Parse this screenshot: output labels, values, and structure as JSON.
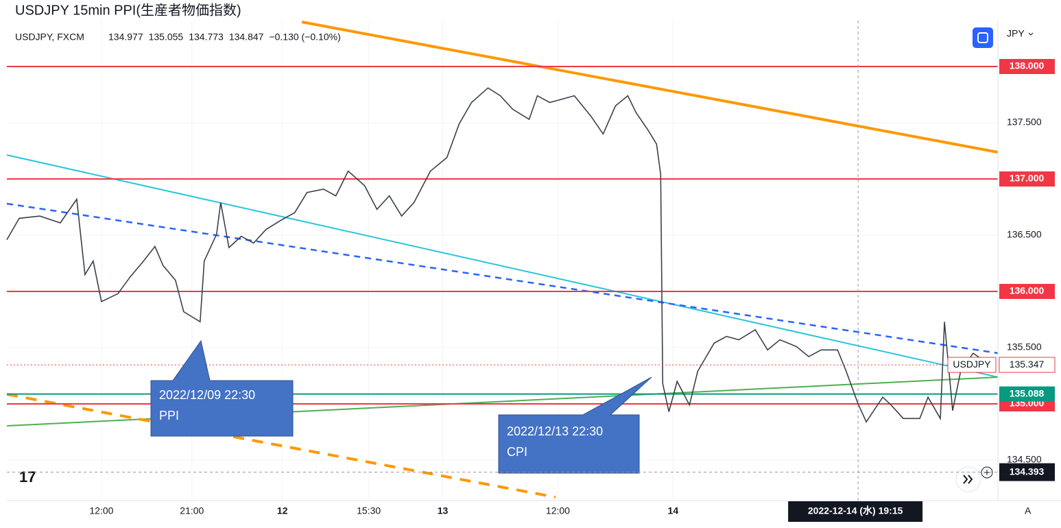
{
  "title": "USDJPY 15min PPI(生産者物価指数)",
  "chart_data": {
    "type": "line",
    "symbol": "USDJPY, FXCM",
    "ohlc": [
      134.977,
      135.055,
      134.773,
      134.847
    ],
    "change": "−0.130 (−0.10%)",
    "currency": "JPY",
    "scale_mode": "A",
    "xlim": [
      0,
      241
    ],
    "ylim": [
      134.15,
      138.4
    ],
    "grid": true,
    "xticks": [
      {
        "value": 23,
        "label": "12:00"
      },
      {
        "value": 45,
        "label": "21:00"
      },
      {
        "value": 67,
        "label": "12"
      },
      {
        "value": 88,
        "label": "15:30"
      },
      {
        "value": 106,
        "label": "13"
      },
      {
        "value": 134,
        "label": "12:00"
      },
      {
        "value": 162,
        "label": "14"
      }
    ],
    "yticks": [
      {
        "value": 137.5,
        "label": "137.500"
      },
      {
        "value": 136.5,
        "label": "136.500"
      },
      {
        "value": 135.5,
        "label": "135.500"
      },
      {
        "value": 134.5,
        "label": "134.500"
      }
    ],
    "levels": [
      {
        "value": 138,
        "label": "138.000",
        "color": "#f23645"
      },
      {
        "value": 137,
        "label": "137.000",
        "color": "#f23645"
      },
      {
        "value": 136,
        "label": "136.000",
        "color": "#f23645"
      },
      {
        "value": 135,
        "label": "135.000",
        "color": "#f23645"
      },
      {
        "value": 135.088,
        "label": "135.088",
        "color": "#089981"
      }
    ],
    "last": 135.347,
    "crosshair": {
      "x": 207,
      "x_label": "2022-12-14 (水)  19:15",
      "y": 134.393
    },
    "series": [
      {
        "name": "USDJPY",
        "color": "#3a3f4b",
        "x": [
          0,
          3,
          8,
          13,
          17,
          19,
          21,
          23,
          27,
          30,
          33,
          36,
          38,
          41,
          43,
          47,
          48,
          51,
          52,
          54,
          57,
          60,
          63,
          67,
          70,
          73,
          77,
          80,
          83,
          87,
          90,
          93,
          96,
          99,
          103,
          107,
          110,
          113,
          117,
          120,
          123,
          127,
          129,
          132,
          135,
          138,
          142,
          145,
          148,
          151,
          153,
          156,
          158,
          159,
          159.5,
          161,
          163,
          166,
          168,
          172,
          175,
          178,
          182,
          185,
          188,
          192,
          195,
          198,
          202,
          204,
          207,
          209,
          213,
          215,
          218,
          222,
          224,
          227,
          228,
          230,
          232,
          235,
          239
        ],
        "values": [
          136.46,
          136.65,
          136.67,
          136.61,
          136.82,
          136.15,
          136.27,
          135.91,
          135.98,
          136.13,
          136.26,
          136.4,
          136.23,
          136.1,
          135.82,
          135.73,
          136.27,
          136.51,
          136.79,
          136.39,
          136.49,
          136.43,
          136.55,
          136.64,
          136.7,
          136.88,
          136.91,
          136.85,
          137.07,
          136.94,
          136.73,
          136.85,
          136.67,
          136.79,
          137.07,
          137.19,
          137.49,
          137.68,
          137.81,
          137.74,
          137.62,
          137.53,
          137.74,
          137.68,
          137.71,
          137.74,
          137.56,
          137.4,
          137.65,
          137.74,
          137.59,
          137.43,
          137.31,
          137.04,
          135.18,
          134.93,
          135.2,
          134.99,
          135.29,
          135.54,
          135.6,
          135.57,
          135.66,
          135.48,
          135.57,
          135.51,
          135.42,
          135.48,
          135.48,
          135.3,
          135,
          134.84,
          135.06,
          134.99,
          134.87,
          134.87,
          135.06,
          134.87,
          135.73,
          134.94,
          135.3,
          135.45,
          135.35
        ]
      }
    ],
    "annotations": [
      {
        "date": "2022/12/09 22:30",
        "event": "PPI"
      },
      {
        "date": "2022/12/13 22:30",
        "event": "CPI"
      }
    ]
  }
}
